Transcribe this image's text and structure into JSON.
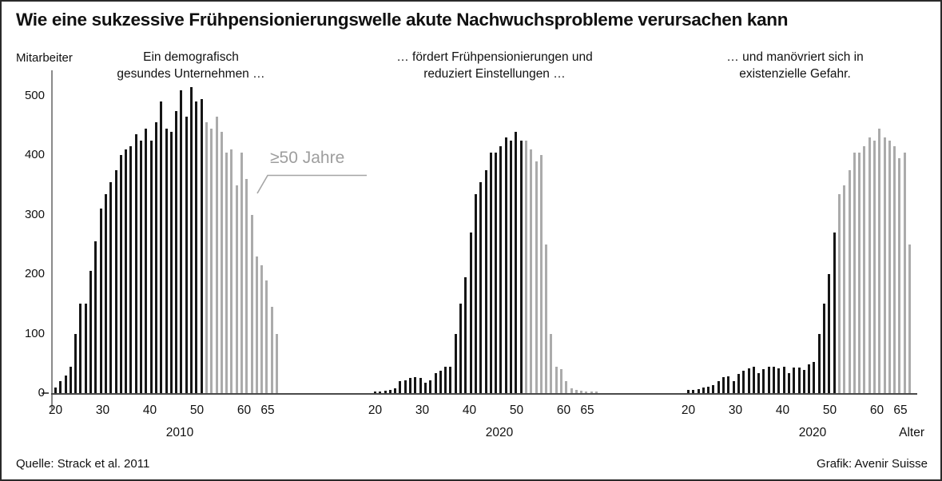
{
  "title": "Wie eine sukzessive Frühpensionierungswelle akute Nachwuchsprobleme verursachen kann",
  "ylabel": "Mitarbeiter",
  "xlabel": "Alter",
  "annotation_label": "≥50 Jahre",
  "footer": {
    "source": "Quelle: Strack et al. 2011",
    "credit": "Grafik: Avenir Suisse"
  },
  "colors": {
    "bar_young": "#161616",
    "bar_old": "#ababab",
    "axis": "#8a8a8a",
    "baseline": "#4a4a4a",
    "annotation_gray": "#9e9e9e"
  },
  "chart_data": {
    "type": "bar",
    "title": "Wie eine sukzessive Frühpensionierungswelle akute Nachwuchsprobleme verursachen kann",
    "ylabel": "Mitarbeiter",
    "xlabel": "Alter",
    "ylim": [
      0,
      520
    ],
    "yticks": [
      0,
      100,
      200,
      300,
      400,
      500
    ],
    "xticks": [
      20,
      30,
      40,
      50,
      60,
      65
    ],
    "age_start": 20,
    "grid": false,
    "legend_note": "≥50 Jahre (graue Balken)",
    "panels": [
      {
        "subtitle": "Ein demografisch\ngesundes Unternehmen …",
        "year": "2010",
        "series": [
          {
            "name": "under50",
            "color_key": "bar_young",
            "values": [
              10,
              20,
              30,
              45,
              100,
              150,
              150,
              205,
              255,
              310,
              335,
              355,
              375,
              400,
              410,
              415,
              435,
              425,
              445,
              425,
              455,
              490,
              445,
              440,
              475,
              510,
              465,
              515,
              490,
              495
            ]
          },
          {
            "name": "over50",
            "color_key": "bar_old",
            "values": [
              455,
              445,
              465,
              440,
              405,
              410,
              350,
              405,
              360,
              300,
              230,
              215,
              190,
              145,
              100
            ]
          }
        ]
      },
      {
        "subtitle": "… fördert Frühpensionierungen und\nreduziert Einstellungen …",
        "year": "2020",
        "series": [
          {
            "name": "under50",
            "color_key": "bar_young",
            "values": [
              3,
              3,
              4,
              5,
              8,
              20,
              22,
              25,
              27,
              25,
              18,
              22,
              33,
              38,
              45,
              45,
              100,
              150,
              195,
              270,
              335,
              355,
              375,
              405,
              405,
              415,
              430,
              425,
              440,
              425
            ]
          },
          {
            "name": "over50",
            "color_key": "bar_old",
            "values": [
              425,
              410,
              390,
              400,
              250,
              100,
              45,
              40,
              20,
              8,
              5,
              4,
              3,
              3,
              2
            ]
          }
        ]
      },
      {
        "subtitle": "… und manövriert sich in\nexistenzielle Gefahr.",
        "year": "2020",
        "series": [
          {
            "name": "under50",
            "color_key": "bar_young",
            "values": [
              5,
              5,
              7,
              9,
              11,
              14,
              20,
              27,
              28,
              20,
              32,
              38,
              42,
              45,
              34,
              40,
              45,
              45,
              42,
              45,
              34,
              43,
              43,
              39,
              48,
              52,
              100,
              150,
              200,
              270
            ]
          },
          {
            "name": "over50",
            "color_key": "bar_old",
            "values": [
              335,
              350,
              375,
              405,
              405,
              415,
              430,
              425,
              445,
              430,
              425,
              415,
              395,
              405,
              250
            ]
          }
        ]
      }
    ]
  }
}
